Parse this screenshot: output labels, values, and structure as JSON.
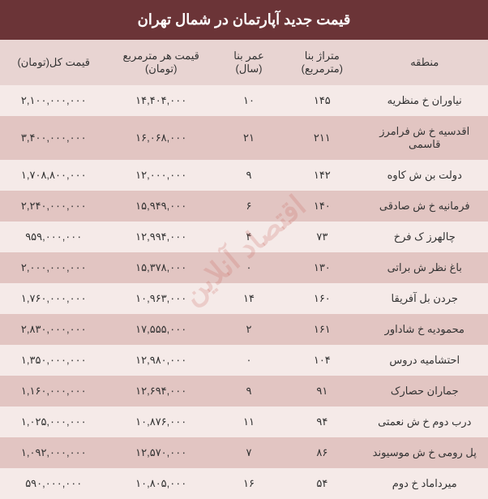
{
  "title": "قیمت جدید آپارتمان در شمال تهران",
  "watermark": "اقتصاد آنلاین",
  "colors": {
    "title_bg": "#6b3437",
    "title_fg": "#ffffff",
    "header_bg": "#e8d4d2",
    "row_odd_bg": "#f5eae8",
    "row_even_bg": "#e2c5c2",
    "text": "#333333",
    "watermark": "rgba(200,100,90,0.22)"
  },
  "columns": [
    "منطقه",
    "متراژ بنا (مترمربع)",
    "عمر بنا (سال)",
    "قیمت هر مترمربع (تومان)",
    "قیمت کل(تومان)"
  ],
  "rows": [
    {
      "region": "نیاوران خ منظریه",
      "area": "۱۴۵",
      "age": "۱۰",
      "price_m": "۱۴,۴۰۴,۰۰۰",
      "price_t": "۲,۱۰۰,۰۰۰,۰۰۰"
    },
    {
      "region": "اقدسیه خ ش فرامرز قاسمی",
      "area": "۲۱۱",
      "age": "۲۱",
      "price_m": "۱۶,۰۶۸,۰۰۰",
      "price_t": "۳,۴۰۰,۰۰۰,۰۰۰"
    },
    {
      "region": "دولت بن ش کاوه",
      "area": "۱۴۲",
      "age": "۹",
      "price_m": "۱۲,۰۰۰,۰۰۰",
      "price_t": "۱,۷۰۸,۸۰۰,۰۰۰"
    },
    {
      "region": "فرمانیه خ ش صادقی",
      "area": "۱۴۰",
      "age": "۶",
      "price_m": "۱۵,۹۴۹,۰۰۰",
      "price_t": "۲,۲۴۰,۰۰۰,۰۰۰"
    },
    {
      "region": "چالهرز ک فرخ",
      "area": "۷۳",
      "age": "۴",
      "price_m": "۱۲,۹۹۴,۰۰۰",
      "price_t": "۹۵۹,۰۰۰,۰۰۰"
    },
    {
      "region": "باغ نظر ش براتی",
      "area": "۱۳۰",
      "age": "۰",
      "price_m": "۱۵,۳۷۸,۰۰۰",
      "price_t": "۲,۰۰۰,۰۰۰,۰۰۰"
    },
    {
      "region": "جردن بل آفریقا",
      "area": "۱۶۰",
      "age": "۱۴",
      "price_m": "۱۰,۹۶۳,۰۰۰",
      "price_t": "۱,۷۶۰,۰۰۰,۰۰۰"
    },
    {
      "region": "محمودیه خ شاداور",
      "area": "۱۶۱",
      "age": "۲",
      "price_m": "۱۷,۵۵۵,۰۰۰",
      "price_t": "۲,۸۳۰,۰۰۰,۰۰۰"
    },
    {
      "region": "احتشامیه دروس",
      "area": "۱۰۴",
      "age": "۰",
      "price_m": "۱۲,۹۸۰,۰۰۰",
      "price_t": "۱,۳۵۰,۰۰۰,۰۰۰"
    },
    {
      "region": "جماران حصارک",
      "area": "۹۱",
      "age": "۹",
      "price_m": "۱۲,۶۹۴,۰۰۰",
      "price_t": "۱,۱۶۰,۰۰۰,۰۰۰"
    },
    {
      "region": "درب دوم خ ش نعمتی",
      "area": "۹۴",
      "age": "۱۱",
      "price_m": "۱۰,۸۷۶,۰۰۰",
      "price_t": "۱,۰۲۵,۰۰۰,۰۰۰"
    },
    {
      "region": "پل رومی خ ش موسیوند",
      "area": "۸۶",
      "age": "۷",
      "price_m": "۱۲,۵۷۰,۰۰۰",
      "price_t": "۱,۰۹۲,۰۰۰,۰۰۰"
    },
    {
      "region": "میرداماد خ دوم",
      "area": "۵۴",
      "age": "۱۶",
      "price_m": "۱۰,۸۰۵,۰۰۰",
      "price_t": "۵۹۰,۰۰۰,۰۰۰"
    }
  ]
}
